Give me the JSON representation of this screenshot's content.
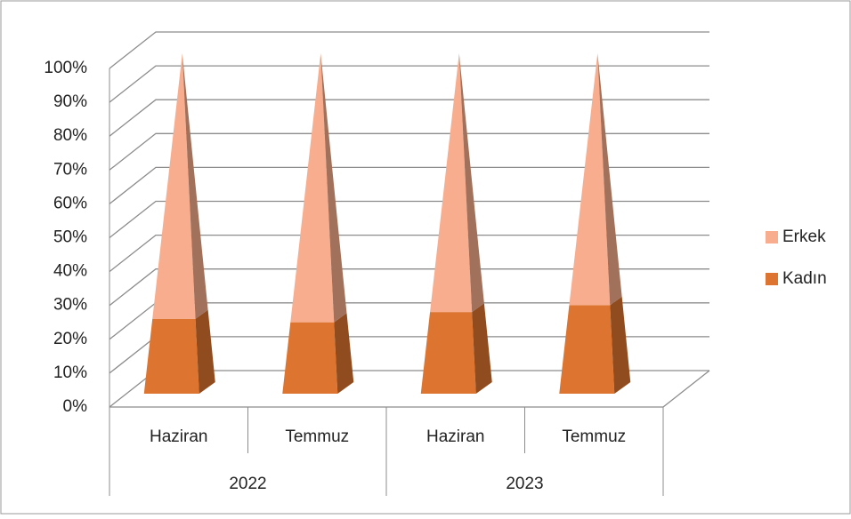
{
  "chart_data": {
    "type": "pyramid3d_stacked100",
    "categories": [
      "Haziran",
      "Temmuz",
      "Haziran",
      "Temmuz"
    ],
    "groups": [
      "2022",
      "2022",
      "2023",
      "2023"
    ],
    "series": [
      {
        "name": "Kadın",
        "color": "#dd7530",
        "values": [
          22,
          21,
          24,
          26
        ]
      },
      {
        "name": "Erkek",
        "color": "#f8ae8e",
        "values": [
          78,
          79,
          76,
          74
        ]
      }
    ],
    "ylim": [
      0,
      100
    ],
    "yticks": [
      {
        "value": 0,
        "label": "0%"
      },
      {
        "value": 10,
        "label": "10%"
      },
      {
        "value": 20,
        "label": "20%"
      },
      {
        "value": 30,
        "label": "30%"
      },
      {
        "value": 40,
        "label": "40%"
      },
      {
        "value": 50,
        "label": "50%"
      },
      {
        "value": 60,
        "label": "60%"
      },
      {
        "value": 70,
        "label": "70%"
      },
      {
        "value": 80,
        "label": "80%"
      },
      {
        "value": 90,
        "label": "90%"
      },
      {
        "value": 100,
        "label": "100%"
      }
    ],
    "grid": true,
    "legend": "right"
  }
}
